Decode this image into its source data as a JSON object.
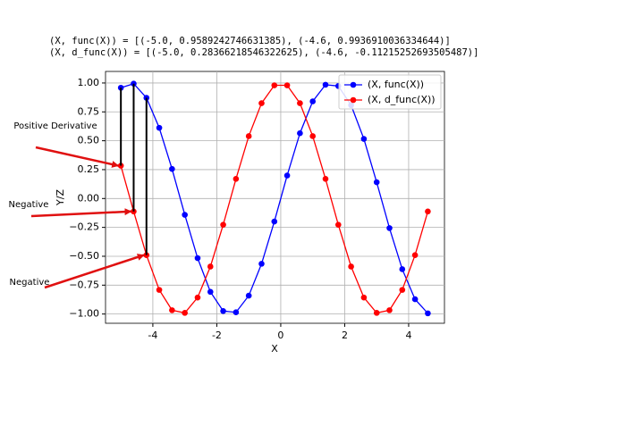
{
  "header": {
    "lines": [
      "(X, func(X)) =  [(-5.0, 0.9589242746631385), (-4.6, 0.9936910036334644)]",
      "(X, d_func(X)) =  [(-5.0, 0.28366218546322625), (-4.6, -0.11215252693505487)]"
    ]
  },
  "chart_data": {
    "type": "line",
    "x_label": "X",
    "y_label": "Y/Z",
    "x": [
      -5.0,
      -4.6,
      -4.2,
      -3.8,
      -3.4,
      -3.0,
      -2.6,
      -2.2,
      -1.8,
      -1.4,
      -1.0,
      -0.6,
      -0.2,
      0.2,
      0.6,
      1.0,
      1.4,
      1.8,
      2.2,
      2.6,
      3.0,
      3.4,
      3.8,
      4.2,
      4.6
    ],
    "series": [
      {
        "name": "(X, func(X))",
        "color": "#0000ff",
        "values": [
          0.959,
          0.994,
          0.872,
          0.612,
          0.256,
          -0.141,
          -0.516,
          -0.808,
          -0.974,
          -0.985,
          -0.841,
          -0.565,
          -0.199,
          0.199,
          0.565,
          0.841,
          0.985,
          0.974,
          0.808,
          0.516,
          0.141,
          -0.256,
          -0.612,
          -0.872,
          -0.994
        ]
      },
      {
        "name": "(X, d_func(X))",
        "color": "#ff0000",
        "values": [
          0.284,
          -0.112,
          -0.49,
          -0.791,
          -0.967,
          -0.99,
          -0.857,
          -0.589,
          -0.227,
          0.17,
          0.54,
          0.825,
          0.98,
          0.98,
          0.825,
          0.54,
          0.17,
          -0.227,
          -0.589,
          -0.857,
          -0.99,
          -0.967,
          -0.791,
          -0.49,
          -0.112
        ]
      }
    ],
    "xlim": [
      -5.48,
      5.12
    ],
    "ylim": [
      -1.08,
      1.1
    ],
    "xticks": [
      -4,
      -2,
      0,
      2,
      4
    ],
    "yticks": [
      {
        "value": 1,
        "label": "1.00"
      },
      {
        "value": 0.75,
        "label": "0.75"
      },
      {
        "value": 0.5,
        "label": "0.50"
      },
      {
        "value": 0.25,
        "label": "0.25"
      },
      {
        "value": 0,
        "label": "0.00"
      },
      {
        "value": -0.25,
        "label": "−0.25"
      },
      {
        "value": -0.5,
        "label": "−0.50"
      },
      {
        "value": -0.75,
        "label": "−0.75"
      },
      {
        "value": -1,
        "label": "−1.00"
      }
    ],
    "grid": true,
    "legend": "upper right",
    "annotations": [
      "Positive Derivative",
      "Negative",
      "Negative"
    ]
  }
}
